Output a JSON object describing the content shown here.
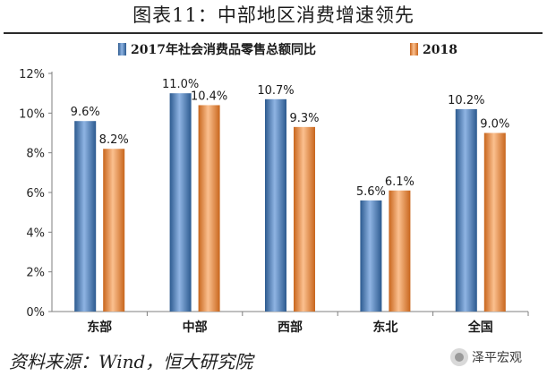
{
  "title": "图表11：中部地区消费增速领先",
  "source": "资料来源：Wind，恒大研究院",
  "watermark": "泽平宏观",
  "colors": {
    "series_2017": "#4f81bd",
    "series_2018": "#f79646"
  },
  "chart_data": {
    "type": "bar",
    "title": "",
    "xlabel": "",
    "ylabel": "",
    "categories": [
      "东部",
      "中部",
      "西部",
      "东北",
      "全国"
    ],
    "series": [
      {
        "name": "2017年社会消费品零售总额同比",
        "values": [
          9.6,
          11.0,
          10.7,
          5.6,
          10.2
        ],
        "labels": [
          "9.6%",
          "11.0%",
          "10.7%",
          "5.6%",
          "10.2%"
        ]
      },
      {
        "name": "2018",
        "values": [
          8.2,
          10.4,
          9.3,
          6.1,
          9.0
        ],
        "labels": [
          "8.2%",
          "10.4%",
          "9.3%",
          "6.1%",
          "9.0%"
        ]
      }
    ],
    "ylim": [
      0,
      12
    ],
    "yticks": [
      0,
      2,
      4,
      6,
      8,
      10,
      12
    ],
    "ytick_labels": [
      "0%",
      "2%",
      "4%",
      "6%",
      "8%",
      "10%",
      "12%"
    ],
    "grid": false,
    "legend": "top"
  }
}
